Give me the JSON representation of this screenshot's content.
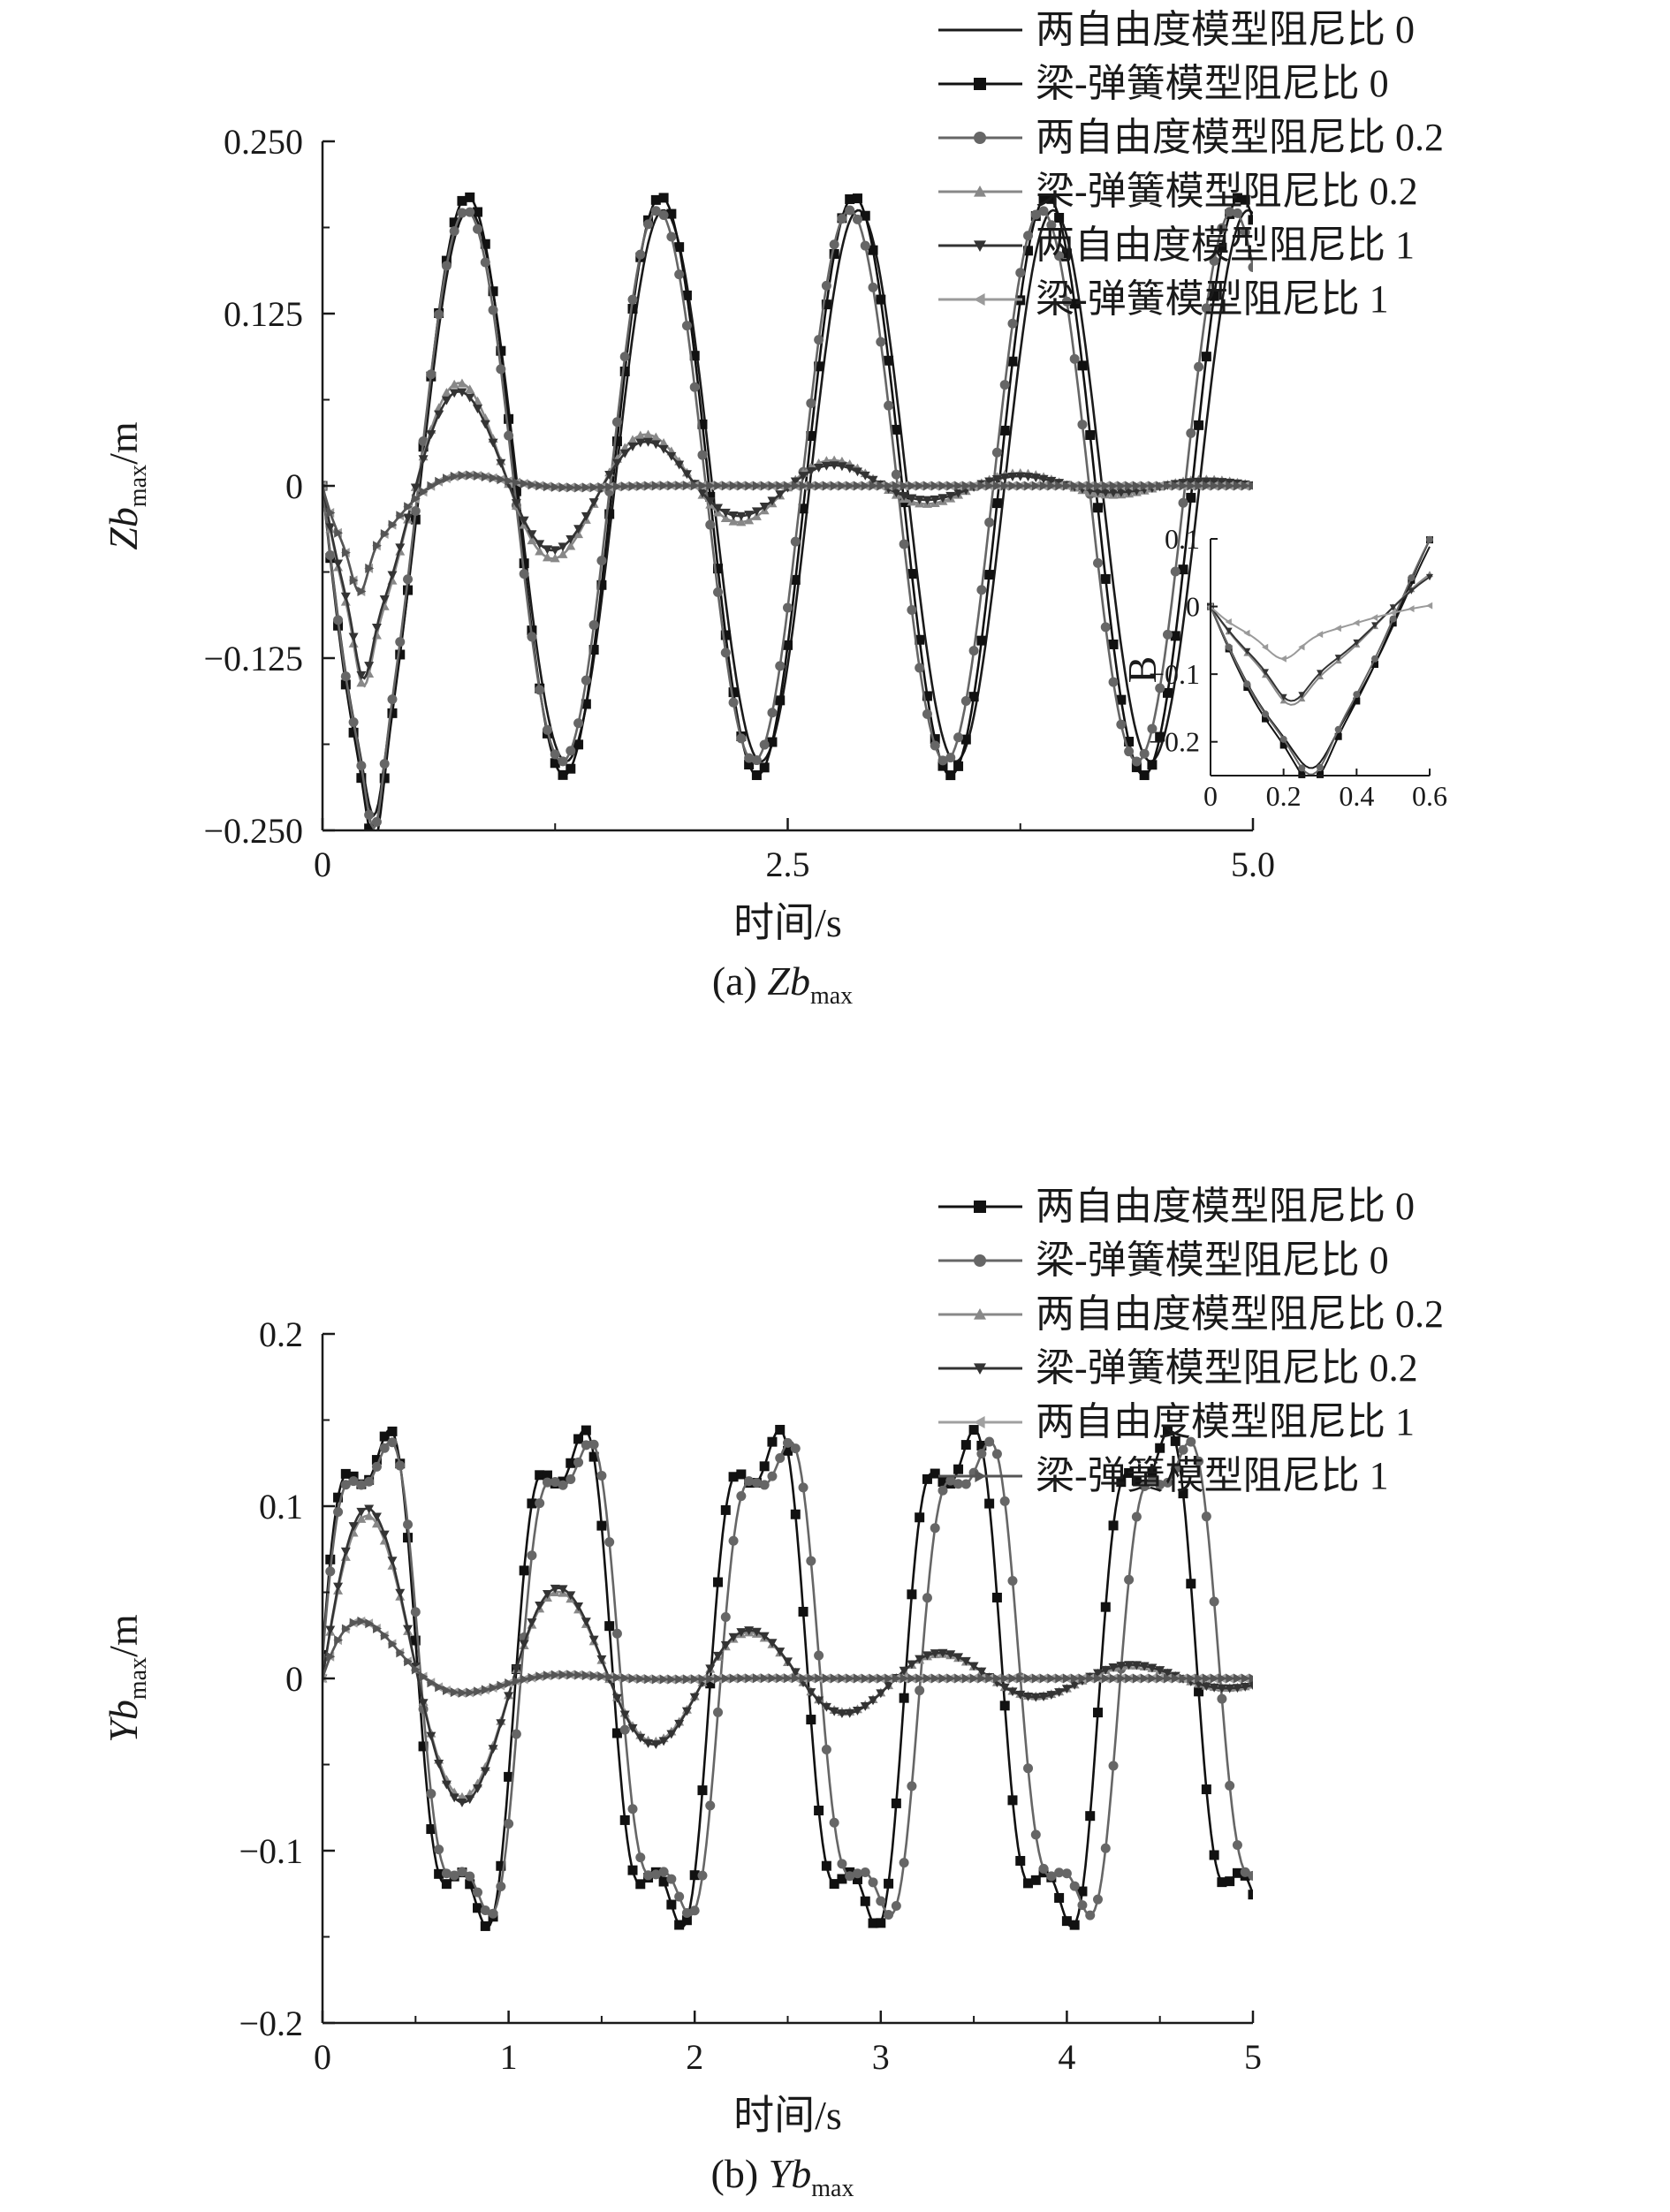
{
  "chart_data": [
    {
      "type": "line",
      "caption": {
        "prefix": "(a) ",
        "var": "Zb",
        "sub": "max"
      },
      "ylabel": {
        "var": "Zb",
        "sub": "max",
        "unit": "/m"
      },
      "xlabel": "时间/s",
      "xlim": [
        0,
        5
      ],
      "ylim": [
        -0.25,
        0.25
      ],
      "x_ticks": [
        "0",
        "2.5",
        "5.0"
      ],
      "y_ticks": [
        "−0.250",
        "−0.125",
        "0",
        "0.125",
        "0.250"
      ],
      "legend_position": "top-right",
      "series": [
        {
          "name": "两自由度模型阻尼比 0",
          "marker": "none",
          "color": "#1a1a1a",
          "amplitude": 0.2,
          "omega": 6.0,
          "zeta": 0.0,
          "dip": [
            0.28,
            -0.04
          ]
        },
        {
          "name": "梁-弹簧模型阻尼比 0",
          "marker": "square",
          "color": "#111111",
          "amplitude": 0.21,
          "omega": 6.05,
          "zeta": 0.0,
          "dip": [
            0.28,
            -0.05
          ]
        },
        {
          "name": "两自由度模型阻尼比 0.2",
          "marker": "circle",
          "color": "#666666",
          "amplitude": 0.2,
          "omega": 6.1,
          "zeta": 0.0,
          "dip": [
            0.28,
            -0.05
          ]
        },
        {
          "name": "梁-弹簧模型阻尼比 0.2",
          "marker": "triangle-up",
          "color": "#888888",
          "amplitude": 0.125,
          "omega": 6.3,
          "zeta": 0.11,
          "dip": [
            0.22,
            -0.04
          ]
        },
        {
          "name": "两自由度模型阻尼比 1",
          "marker": "triangle-down",
          "color": "#333333",
          "amplitude": 0.12,
          "omega": 6.3,
          "zeta": 0.12,
          "dip": [
            0.22,
            -0.04
          ]
        },
        {
          "name": "梁-弹簧模型阻尼比 1",
          "marker": "triangle-left",
          "color": "#9a9a9a",
          "amplitude": 0.1,
          "omega": 6.2,
          "zeta": 0.5,
          "dip": [
            0.2,
            -0.03
          ]
        },
        {
          "name": "",
          "marker": "triangle-right",
          "color": "#555555",
          "amplitude": 0.1,
          "omega": 6.2,
          "zeta": 0.5,
          "dip": [
            0.2,
            -0.03
          ]
        }
      ],
      "inset": {
        "xlim": [
          0,
          0.6
        ],
        "ylim": [
          -0.25,
          0.1
        ],
        "x_ticks": [
          "0",
          "0.2",
          "0.4",
          "0.6"
        ],
        "y_ticks": [
          "0.1",
          "0",
          "−0.1",
          "−0.2"
        ],
        "label": "B"
      }
    },
    {
      "type": "line",
      "caption": {
        "prefix": "(b) ",
        "var": "Yb",
        "sub": "max"
      },
      "ylabel": {
        "var": "Yb",
        "sub": "max",
        "unit": "/m"
      },
      "xlabel": "时间/s",
      "xlim": [
        0,
        5
      ],
      "ylim": [
        -0.2,
        0.2
      ],
      "x_ticks": [
        "0",
        "1",
        "2",
        "3",
        "4",
        "5"
      ],
      "y_ticks": [
        "−0.2",
        "−0.1",
        "0",
        "0.1",
        "0.2"
      ],
      "legend_position": "top-right",
      "series": [
        {
          "name": "两自由度模型阻尼比 0",
          "marker": "square",
          "color": "#111111",
          "amplitude": 0.15,
          "omega": 6.0,
          "zeta": 0.0,
          "ripple": 0.035
        },
        {
          "name": "梁-弹簧模型阻尼比 0",
          "marker": "circle",
          "color": "#666666",
          "amplitude": 0.145,
          "omega": 5.85,
          "zeta": 0.0,
          "ripple": 0.03
        },
        {
          "name": "两自由度模型阻尼比 0.2",
          "marker": "triangle-up",
          "color": "#888888",
          "amplitude": 0.11,
          "omega": 6.15,
          "zeta": 0.1,
          "ripple": 0.0
        },
        {
          "name": "梁-弹簧模型阻尼比 0.2",
          "marker": "triangle-down",
          "color": "#333333",
          "amplitude": 0.115,
          "omega": 6.15,
          "zeta": 0.1,
          "ripple": 0.0
        },
        {
          "name": "两自由度模型阻尼比 1",
          "marker": "triangle-left",
          "color": "#a0a0a0",
          "amplitude": 0.06,
          "omega": 6.2,
          "zeta": 0.4,
          "ripple": 0.0
        },
        {
          "name": "梁-弹簧模型阻尼比 1",
          "marker": "triangle-right",
          "color": "#555555",
          "amplitude": 0.06,
          "omega": 6.2,
          "zeta": 0.4,
          "ripple": 0.0
        }
      ]
    }
  ]
}
